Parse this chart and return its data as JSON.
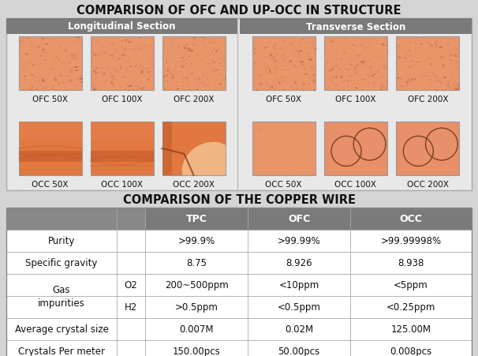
{
  "title1": "COMPARISON OF OFC AND UP-OCC IN STRUCTURE",
  "title2": "COMPARISON OF THE COPPER WIRE",
  "section1_label": "Longitudinal Section",
  "section2_label": "Transverse Section",
  "ofc_long_labels": [
    "OFC 50X",
    "OFC 100X",
    "OFC 200X"
  ],
  "occ_long_labels": [
    "OCC 50X",
    "OCC 100X",
    "OCC 200X"
  ],
  "ofc_trans_labels": [
    "OFC 50X",
    "OFC 100X",
    "OFC 200X"
  ],
  "occ_trans_labels": [
    "OCC 50X",
    "OCC 100X",
    "OCC 200X"
  ],
  "bg_color": "#d4d4d4",
  "header_color": "#7a7a7a",
  "header_text_color": "#ffffff",
  "title_color": "#111111",
  "table_header_bg": "#7a7a7a",
  "table_header_text": "#ffffff",
  "table_border_color": "#999999",
  "ofc_base": "#e8956a",
  "occ_base": "#e07040",
  "table_cols": [
    "",
    "",
    "TPC",
    "OFC",
    "OCC"
  ],
  "table_rows": [
    [
      "Purity",
      "",
      ">99.9%",
      ">99.99%",
      ">99.99998%"
    ],
    [
      "Specific gravity",
      "",
      "8.75",
      "8.926",
      "8.938"
    ],
    [
      "Gas\nimpurities",
      "O2",
      "200~500ppm",
      "<10ppm",
      "<5ppm"
    ],
    [
      "",
      "H2",
      ">0.5ppm",
      "<0.5ppm",
      "<0.25ppm"
    ],
    [
      "Average crystal size",
      "",
      "0.007M",
      "0.02M",
      "125.00M"
    ],
    [
      "Crystals Per meter",
      "",
      "150.00pcs",
      "50.00pcs",
      "0.008pcs"
    ]
  ]
}
